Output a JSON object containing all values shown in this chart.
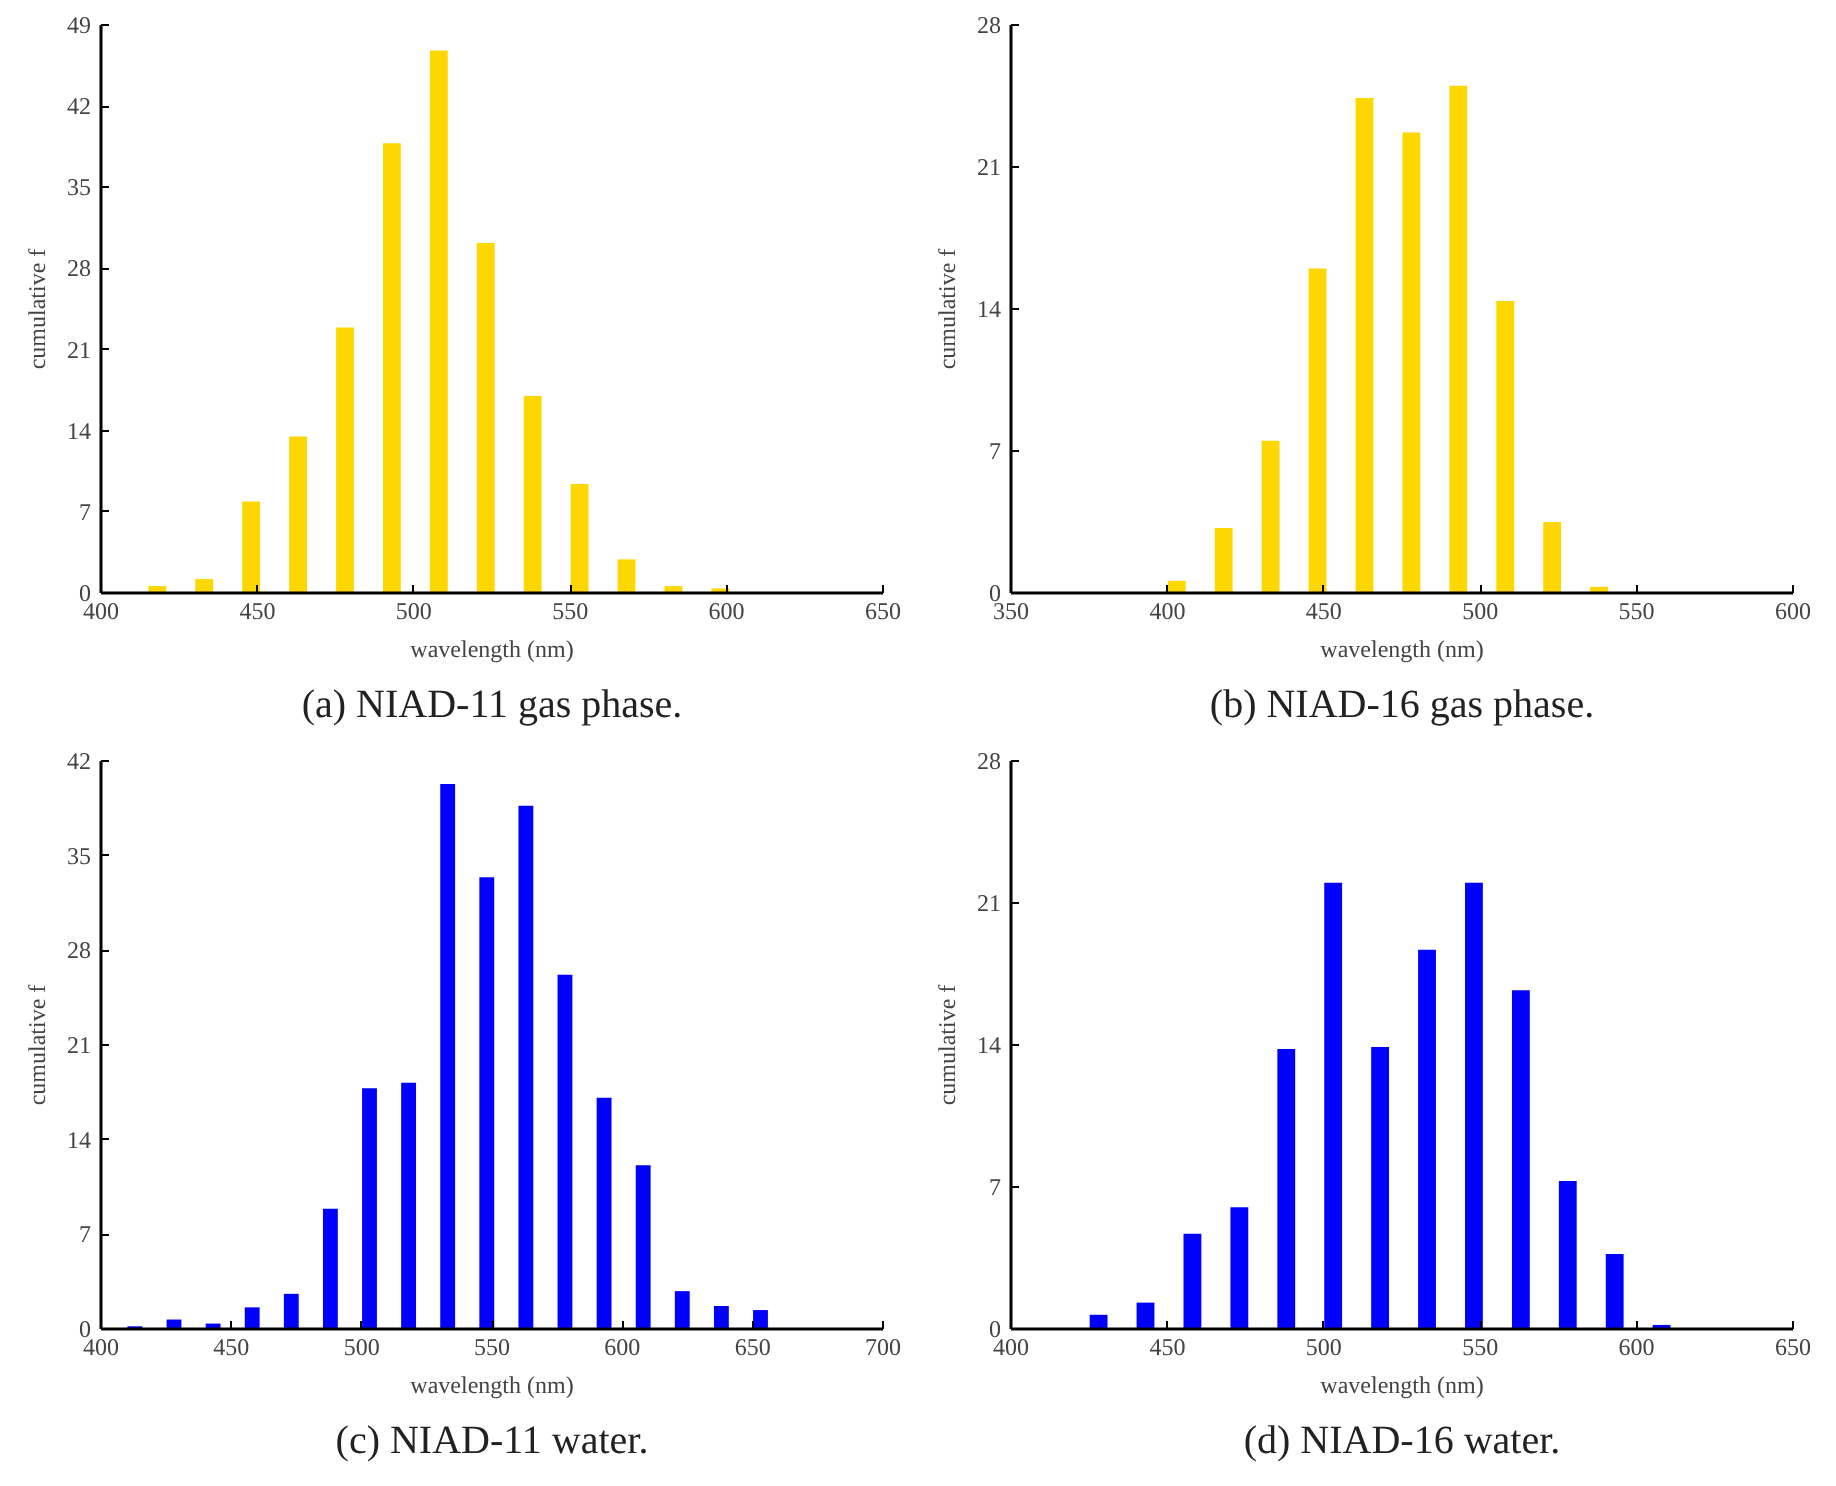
{
  "chart_data": [
    {
      "type": "bar",
      "title": "(a) NIAD-11 gas phase.",
      "xlabel": "wavelength (nm)",
      "ylabel": "cumulative f",
      "color": "#ffd700",
      "x": [
        418,
        433,
        448,
        463,
        478,
        493,
        508,
        523,
        538,
        553,
        568,
        583,
        598
      ],
      "values": [
        0.6,
        1.2,
        7.9,
        13.5,
        22.9,
        38.8,
        46.8,
        30.2,
        17.0,
        9.4,
        2.9,
        0.6,
        0.4
      ],
      "xlim": [
        400,
        650
      ],
      "xticks": [
        400,
        450,
        500,
        550,
        600,
        650
      ],
      "ylim": [
        0,
        49
      ],
      "yticks": [
        0,
        7,
        14,
        21,
        28,
        35,
        42,
        49
      ],
      "grid": false
    },
    {
      "type": "bar",
      "title": "(b) NIAD-16 gas phase.",
      "xlabel": "wavelength (nm)",
      "ylabel": "cumulative f",
      "color": "#ffd700",
      "x": [
        403,
        418,
        433,
        448,
        463,
        478,
        493,
        508,
        523,
        538
      ],
      "values": [
        0.6,
        3.2,
        7.5,
        16.0,
        24.4,
        22.7,
        25.0,
        14.4,
        3.5,
        0.3
      ],
      "xlim": [
        350,
        600
      ],
      "xticks": [
        350,
        400,
        450,
        500,
        550,
        600
      ],
      "ylim": [
        0,
        28
      ],
      "yticks": [
        0,
        7,
        14,
        21,
        28
      ],
      "grid": false
    },
    {
      "type": "bar",
      "title": "(c) NIAD-11 water.",
      "xlabel": "wavelength (nm)",
      "ylabel": "cumulative f",
      "color": "#0000ff",
      "x": [
        413,
        428,
        443,
        458,
        473,
        488,
        503,
        518,
        533,
        548,
        563,
        578,
        593,
        608,
        623,
        638,
        653
      ],
      "values": [
        0.2,
        0.7,
        0.4,
        1.6,
        2.6,
        8.9,
        17.8,
        18.2,
        40.3,
        33.4,
        38.7,
        26.2,
        17.1,
        12.1,
        2.8,
        1.7,
        1.4
      ],
      "xlim": [
        400,
        700
      ],
      "xticks": [
        400,
        450,
        500,
        550,
        600,
        650,
        700
      ],
      "ylim": [
        0,
        42
      ],
      "yticks": [
        0,
        7,
        14,
        21,
        28,
        35,
        42
      ],
      "grid": false
    },
    {
      "type": "bar",
      "title": "(d) NIAD-16 water.",
      "xlabel": "wavelength (nm)",
      "ylabel": "cumulative f",
      "color": "#0000ff",
      "x": [
        428,
        443,
        458,
        473,
        488,
        503,
        518,
        533,
        548,
        563,
        578,
        593,
        608
      ],
      "values": [
        0.7,
        1.3,
        4.7,
        6.0,
        13.8,
        22.0,
        13.9,
        18.7,
        22.0,
        16.7,
        7.3,
        3.7,
        0.2
      ],
      "xlim": [
        400,
        650
      ],
      "xticks": [
        400,
        450,
        500,
        550,
        600,
        650
      ],
      "ylim": [
        0,
        28
      ],
      "yticks": [
        0,
        7,
        14,
        21,
        28
      ],
      "grid": false
    }
  ]
}
